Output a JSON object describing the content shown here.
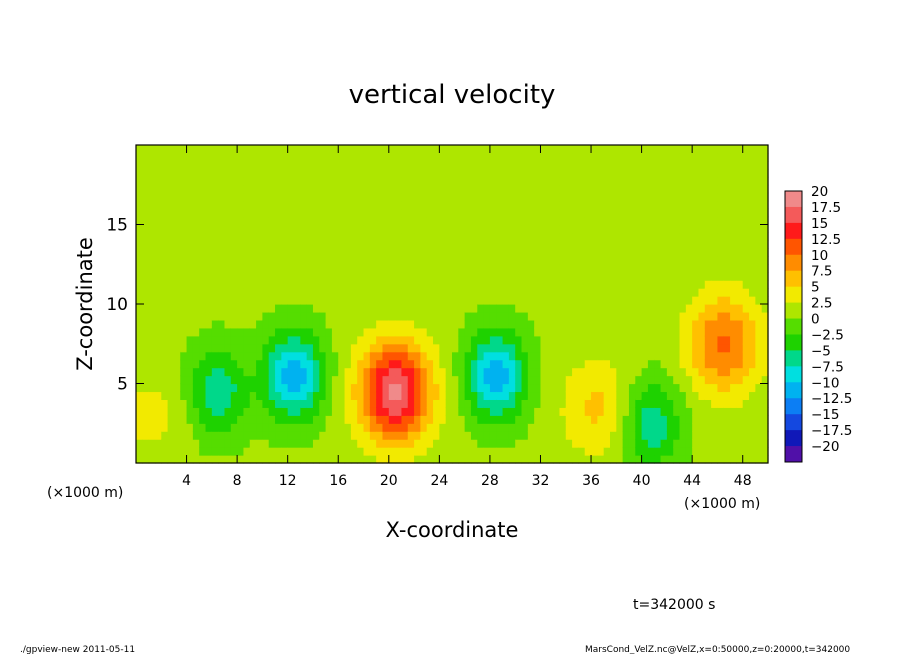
{
  "chart_data": {
    "type": "heatmap",
    "title": "vertical velocity",
    "xlabel": "X-coordinate",
    "ylabel": "Z-coordinate",
    "x_unit_label": "(×1000 m)",
    "y_unit_label": "(×1000 m)",
    "xlim": [
      0,
      50
    ],
    "ylim": [
      0,
      20
    ],
    "x_ticks": [
      4,
      8,
      12,
      16,
      20,
      24,
      28,
      32,
      36,
      40,
      44,
      48
    ],
    "y_ticks": [
      5,
      10,
      15
    ],
    "colorbar": {
      "ticks": [
        "20",
        "17.5",
        "15",
        "12.5",
        "10",
        "7.5",
        "5",
        "2.5",
        "0",
        "−2.5",
        "−5",
        "−7.5",
        "−10",
        "−12.5",
        "−15",
        "−17.5",
        "−20"
      ],
      "colors": [
        "#f08a8a",
        "#f45a5a",
        "#ff1a1a",
        "#ff5500",
        "#ff8c00",
        "#ffc000",
        "#f2ea00",
        "#aee600",
        "#55dd00",
        "#1ed200",
        "#00d88a",
        "#00dfe0",
        "#00b2f0",
        "#0c7ef4",
        "#1448e0",
        "#1018b8",
        "#5010a8"
      ]
    },
    "features": [
      {
        "kind": "updraft",
        "x": 20.5,
        "z": 4.5,
        "peak": 17.5
      },
      {
        "kind": "updraft",
        "x": 46.5,
        "z": 7.5,
        "peak": 10
      },
      {
        "kind": "updraft",
        "x": 36.5,
        "z": 3.5,
        "peak": 5
      },
      {
        "kind": "downdraft",
        "x": 12.5,
        "z": 5.5,
        "peak": -12.5
      },
      {
        "kind": "downdraft",
        "x": 28.5,
        "z": 5.5,
        "peak": -12.5
      },
      {
        "kind": "downdraft",
        "x": 6.5,
        "z": 4.5,
        "peak": -7.5
      },
      {
        "kind": "downdraft",
        "x": 40.8,
        "z": 2.5,
        "peak": -7.5
      }
    ]
  },
  "time_label": "t=342000 s",
  "footer": {
    "program": "./gpview-new   2011-05-11",
    "source": "MarsCond_VelZ.nc@VelZ,x=0:50000,z=0:20000,t=342000"
  }
}
